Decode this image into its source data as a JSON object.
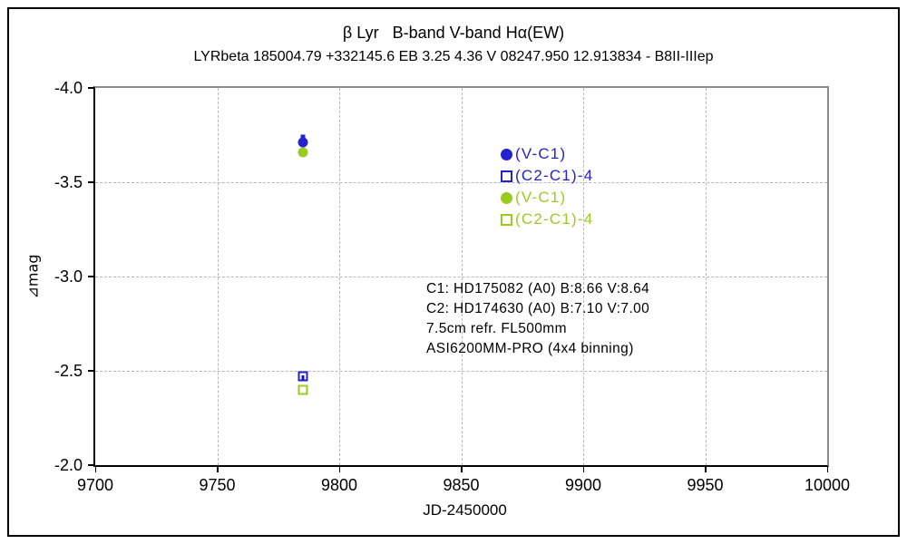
{
  "chart_data": {
    "type": "scatter",
    "title": "β Lyr   B-band V-band Hα(EW)",
    "subtitle": "LYRbeta 185004.79 +332145.6 EB 3.25 4.36 V 08247.950 12.913834 - B8II-IIIep",
    "xlabel": "JD-2450000",
    "ylabel": "⊿mag",
    "xlim": [
      9700,
      10000
    ],
    "ylim": [
      -4.0,
      -2.0
    ],
    "y_axis_inverted": true,
    "xticks": [
      9700,
      9750,
      9800,
      9850,
      9900,
      9950,
      10000
    ],
    "yticks": [
      -4.0,
      -3.5,
      -3.0,
      -2.5,
      -2.0
    ],
    "grid": "dashed-gray-both-axes",
    "legend_position": "inside-upper-right-area",
    "series": [
      {
        "name": "(V-C1)",
        "marker": "filled-circle",
        "color": "#2222d0",
        "points": [
          [
            9785,
            -3.71
          ]
        ]
      },
      {
        "name": "(C2-C1)-4",
        "marker": "open-square",
        "color": "#2222d0",
        "points": [
          [
            9785,
            -2.47
          ]
        ]
      },
      {
        "name": "(V-C1)",
        "marker": "filled-circle",
        "color": "#99cc22",
        "points": [
          [
            9785,
            -3.66
          ]
        ]
      },
      {
        "name": "(C2-C1)-4",
        "marker": "open-square",
        "color": "#99cc22",
        "points": [
          [
            9785,
            -2.4
          ]
        ]
      }
    ],
    "extra_marks": [
      {
        "x": 9785,
        "y": -3.74,
        "color": "#2222d0",
        "w": 5,
        "h": 5,
        "layer": "behind",
        "note": "small mark peeking above blue circle"
      },
      {
        "x": 9785,
        "y": -2.46,
        "color": "#1a1a99",
        "w": 3,
        "h": 6,
        "layer": "front",
        "note": "dark tick inside blue open square"
      }
    ],
    "annotation": {
      "lines": [
        "C1: HD175082 (A0) B:8.66 V:8.64",
        "C2: HD174630 (A0) B:7.10 V:7.00",
        "7.5cm refr. FL500mm",
        "ASI6200MM-PRO (4x4 binning)"
      ]
    }
  },
  "colors": {
    "blue_series": "#2222d0",
    "green_series": "#99cc22",
    "navy_mark": "#1a1a99",
    "gridline": "#b8b8b8",
    "frame_gray": "#8c8c8c",
    "axis_black": "#000000"
  }
}
